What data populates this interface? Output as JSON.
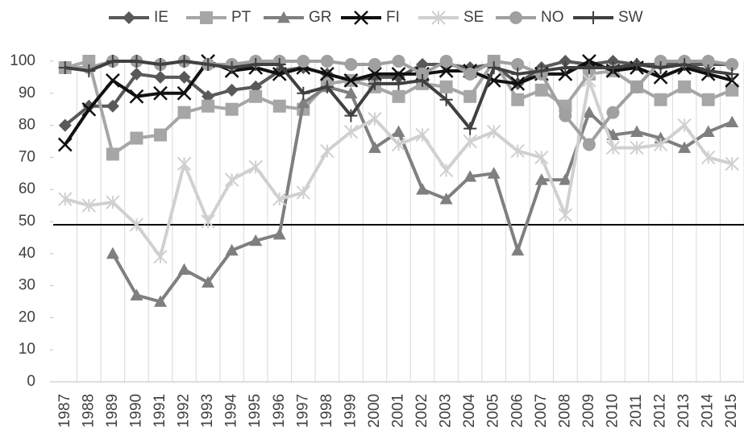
{
  "chart_data": {
    "type": "line",
    "categories": [
      "1987",
      "1988",
      "1989",
      "1990",
      "1991",
      "1992",
      "1993",
      "1994",
      "1995",
      "1996",
      "1997",
      "1998",
      "1999",
      "2000",
      "2001",
      "2002",
      "2003",
      "2004",
      "2005",
      "2006",
      "2007",
      "2008",
      "2009",
      "2010",
      "2011",
      "2012",
      "2013",
      "2014",
      "2015"
    ],
    "series": [
      {
        "name": "IE",
        "color": "#595959",
        "marker": "diamond",
        "values": [
          80,
          86,
          86,
          96,
          95,
          95,
          89,
          91,
          92,
          97,
          98,
          96,
          94,
          95,
          95,
          99,
          99,
          98,
          99,
          93,
          98,
          100,
          99,
          100,
          99,
          99,
          99,
          99,
          99
        ]
      },
      {
        "name": "PT",
        "color": "#a6a6a6",
        "marker": "square",
        "values": [
          98,
          100,
          71,
          76,
          77,
          84,
          86,
          85,
          89,
          86,
          85,
          93,
          94,
          92,
          89,
          93,
          92,
          89,
          100,
          88,
          91,
          86,
          96,
          97,
          92,
          88,
          92,
          88,
          91
        ]
      },
      {
        "name": "GR",
        "color": "#7f7f7f",
        "marker": "triangle",
        "values": [
          null,
          null,
          40,
          27,
          25,
          35,
          31,
          41,
          44,
          46,
          87,
          92,
          90,
          73,
          78,
          60,
          57,
          64,
          65,
          41,
          63,
          63,
          84,
          77,
          78,
          76,
          73,
          78,
          81
        ]
      },
      {
        "name": "FI",
        "color": "#111111",
        "marker": "x",
        "values": [
          74,
          85,
          94,
          89,
          90,
          90,
          100,
          97,
          98,
          96,
          98,
          96,
          94,
          96,
          96,
          96,
          97,
          97,
          94,
          93,
          96,
          96,
          100,
          97,
          98,
          95,
          98,
          96,
          94
        ]
      },
      {
        "name": "SE",
        "color": "#d0d0d0",
        "marker": "star",
        "values": [
          57,
          55,
          56,
          49,
          39,
          68,
          50,
          63,
          67,
          57,
          59,
          72,
          78,
          82,
          74,
          77,
          66,
          75,
          78,
          72,
          70,
          52,
          94,
          73,
          73,
          74,
          80,
          70,
          68
        ]
      },
      {
        "name": "NO",
        "color": "#a0a0a0",
        "marker": "circle",
        "values": [
          98,
          98,
          100,
          100,
          99,
          100,
          99,
          99,
          100,
          100,
          100,
          100,
          99,
          99,
          100,
          96,
          100,
          96,
          100,
          99,
          96,
          83,
          74,
          84,
          92,
          100,
          100,
          100,
          99
        ]
      },
      {
        "name": "SW",
        "color": "#404040",
        "marker": "plus",
        "values": [
          98,
          97,
          100,
          100,
          99,
          100,
          99,
          98,
          99,
          99,
          90,
          92,
          83,
          93,
          93,
          94,
          88,
          79,
          98,
          96,
          97,
          98,
          98,
          98,
          99,
          98,
          99,
          97,
          96
        ]
      }
    ],
    "ylim": [
      0,
      100
    ],
    "yticks": [
      0,
      10,
      20,
      30,
      40,
      50,
      60,
      70,
      80,
      90,
      100
    ],
    "reference_line": 49,
    "grid": true,
    "legend": "top"
  }
}
